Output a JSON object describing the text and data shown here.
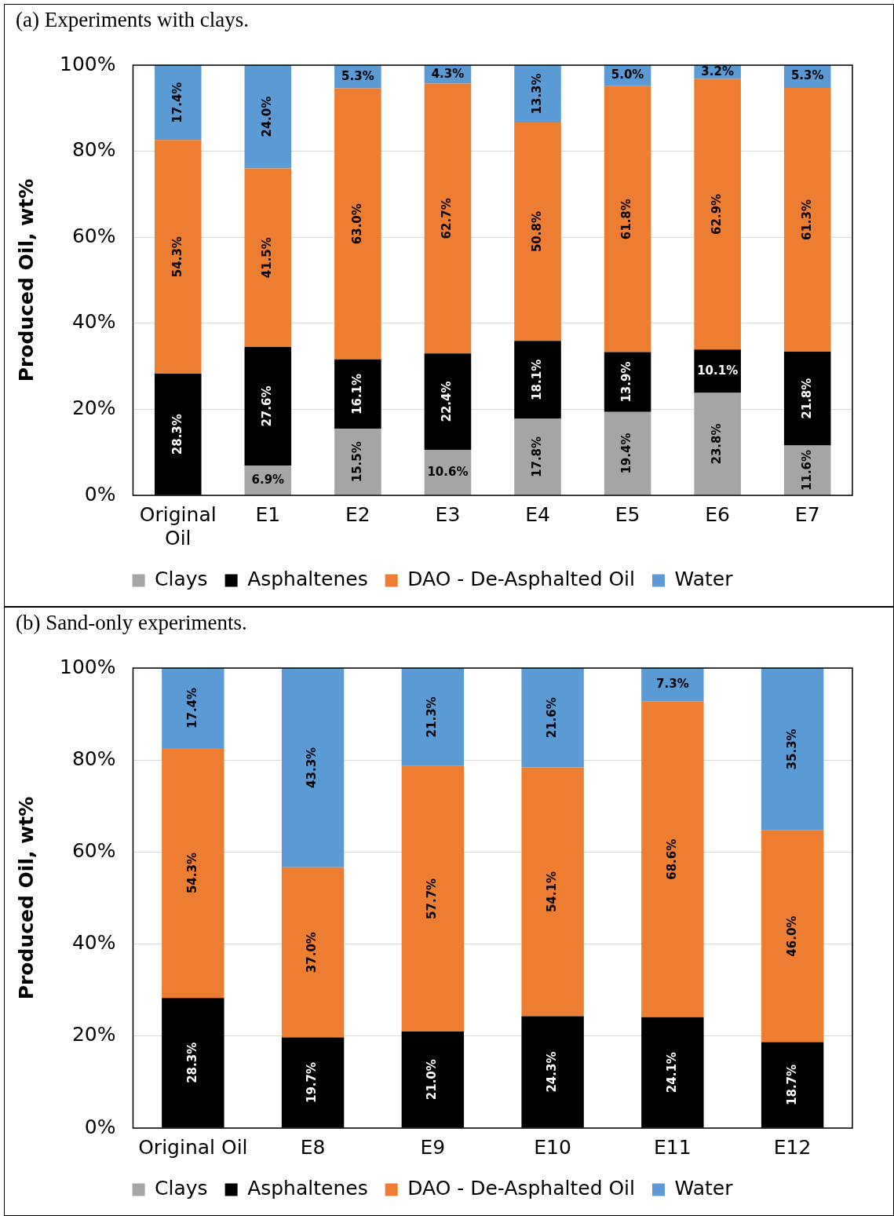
{
  "chart_data": [
    {
      "type": "bar",
      "title": "(a) Experiments with clays.",
      "ylabel": "Produced Oil, wt%",
      "stacked": true,
      "grid": "y",
      "legend": "bottom",
      "ylim": [
        0,
        100
      ],
      "yticks": [
        {
          "value": 0,
          "label": "0%"
        },
        {
          "value": 20,
          "label": "20%"
        },
        {
          "value": 40,
          "label": "40%"
        },
        {
          "value": 60,
          "label": "60%"
        },
        {
          "value": 80,
          "label": "80%"
        },
        {
          "value": 100,
          "label": "100%"
        }
      ],
      "categories": [
        "Original Oil",
        "E1",
        "E2",
        "E3",
        "E4",
        "E5",
        "E6",
        "E7"
      ],
      "series": [
        {
          "name": "Clays",
          "color": "#a5a5a5",
          "values": [
            null,
            6.9,
            15.5,
            10.6,
            17.8,
            19.4,
            23.8,
            11.6
          ],
          "value_labels": [
            null,
            "6.9%",
            "15.5%",
            "10.6%",
            "17.8%",
            "19.4%",
            "23.8%",
            "11.6%"
          ]
        },
        {
          "name": "Asphaltenes",
          "color": "#000000",
          "values": [
            28.3,
            27.6,
            16.1,
            22.4,
            18.1,
            13.9,
            10.1,
            21.8
          ],
          "value_labels": [
            "28.3%",
            "27.6%",
            "16.1%",
            "22.4%",
            "18.1%",
            "13.9%",
            "10.1%",
            "21.8%"
          ]
        },
        {
          "name": "DAO - De-Asphalted Oil",
          "color": "#ed7d31",
          "values": [
            54.3,
            41.5,
            63.0,
            62.7,
            50.8,
            61.8,
            62.9,
            61.3
          ],
          "value_labels": [
            "54.3%",
            "41.5%",
            "63.0%",
            "62.7%",
            "50.8%",
            "61.8%",
            "62.9%",
            "61.3%"
          ]
        },
        {
          "name": "Water",
          "color": "#5b9bd5",
          "values": [
            17.4,
            24.0,
            5.3,
            4.3,
            13.3,
            5.0,
            3.2,
            5.3
          ],
          "value_labels": [
            "17.4%",
            "24.0%",
            "5.3%",
            "4.3%",
            "13.3%",
            "5.0%",
            "3.2%",
            "5.3%"
          ]
        }
      ]
    },
    {
      "type": "bar",
      "title": "(b) Sand-only experiments.",
      "ylabel": "Produced Oil, wt%",
      "stacked": true,
      "grid": "y",
      "legend": "bottom",
      "ylim": [
        0,
        100
      ],
      "yticks": [
        {
          "value": 0,
          "label": "0%"
        },
        {
          "value": 20,
          "label": "20%"
        },
        {
          "value": 40,
          "label": "40%"
        },
        {
          "value": 60,
          "label": "60%"
        },
        {
          "value": 80,
          "label": "80%"
        },
        {
          "value": 100,
          "label": "100%"
        }
      ],
      "categories": [
        "Original Oil",
        "E8",
        "E9",
        "E10",
        "E11",
        "E12"
      ],
      "series": [
        {
          "name": "Clays",
          "color": "#a5a5a5",
          "values": [
            null,
            null,
            null,
            null,
            null,
            null
          ]
        },
        {
          "name": "Asphaltenes",
          "color": "#000000",
          "values": [
            28.3,
            19.7,
            21.0,
            24.3,
            24.1,
            18.7
          ],
          "value_labels": [
            "28.3%",
            "19.7%",
            "21.0%",
            "24.3%",
            "24.1%",
            "18.7%"
          ]
        },
        {
          "name": "DAO - De-Asphalted Oil",
          "color": "#ed7d31",
          "values": [
            54.3,
            37.0,
            57.7,
            54.1,
            68.6,
            46.0
          ],
          "value_labels": [
            "54.3%",
            "37.0%",
            "57.7%",
            "54.1%",
            "68.6%",
            "46.0%"
          ]
        },
        {
          "name": "Water",
          "color": "#5b9bd5",
          "values": [
            17.4,
            43.3,
            21.3,
            21.6,
            7.3,
            35.3
          ],
          "value_labels": [
            "17.4%",
            "43.3%",
            "21.3%",
            "21.6%",
            "7.3%",
            "35.3%"
          ]
        }
      ]
    }
  ]
}
